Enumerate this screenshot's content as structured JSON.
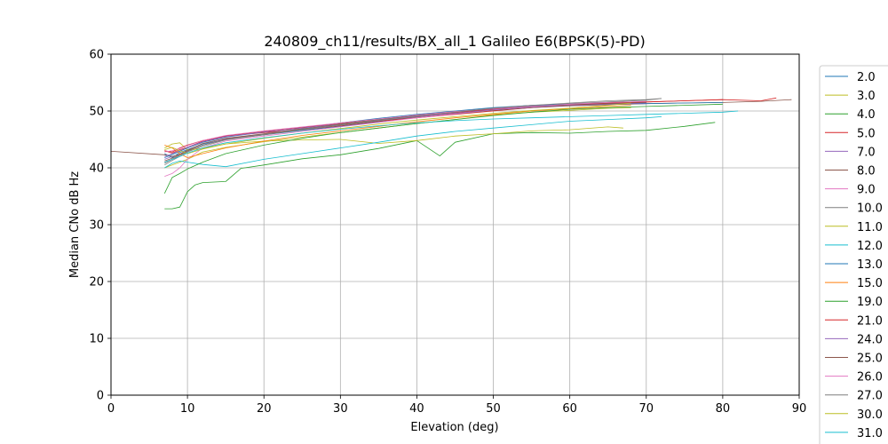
{
  "chart_data": {
    "type": "line",
    "title": "240809_ch11/results/BX_all_1 Galileo E6(BPSK(5)-PD)",
    "xlabel": "Elevation (deg)",
    "ylabel": "Median CNo dB Hz",
    "xlim": [
      0,
      90
    ],
    "ylim": [
      0,
      60
    ],
    "xticks": [
      "0",
      "10",
      "20",
      "30",
      "40",
      "50",
      "60",
      "70",
      "80",
      "90"
    ],
    "yticks": [
      "0",
      "10",
      "20",
      "30",
      "40",
      "50",
      "60"
    ],
    "grid": true,
    "legend_position": "outside-right",
    "series": [
      {
        "name": "2.0",
        "color": "#1f77b4",
        "x": [
          7,
          8,
          9,
          10,
          12,
          15,
          20,
          25,
          30,
          35,
          40,
          45,
          50,
          55,
          60,
          65,
          70
        ],
        "y": [
          42.5,
          41.8,
          42.7,
          43.2,
          44.2,
          45.0,
          45.8,
          46.6,
          47.3,
          48.1,
          49.0,
          49.8,
          50.3,
          50.7,
          51.0,
          51.2,
          51.3
        ]
      },
      {
        "name": "3.0",
        "color": "#bcbd22",
        "x": [
          7,
          8,
          9,
          10,
          12,
          15,
          20,
          25,
          30,
          35,
          40,
          45,
          50,
          55,
          60,
          65,
          68
        ],
        "y": [
          40.0,
          40.5,
          41.0,
          41.5,
          42.8,
          43.6,
          44.6,
          45.4,
          46.2,
          47.0,
          47.8,
          48.5,
          49.3,
          49.8,
          50.1,
          50.5,
          50.6
        ]
      },
      {
        "name": "4.0",
        "color": "#2ca02c",
        "x": [
          7,
          8,
          9,
          10,
          11,
          12,
          15,
          17,
          20,
          25,
          30,
          35,
          40,
          43,
          45,
          50,
          55,
          60,
          65,
          70,
          75,
          79
        ],
        "y": [
          32.8,
          32.8,
          33.1,
          35.8,
          37.0,
          37.4,
          37.6,
          39.9,
          40.5,
          41.6,
          42.3,
          43.4,
          44.8,
          42.1,
          44.5,
          46.0,
          46.2,
          46.1,
          46.4,
          46.6,
          47.3,
          48.0
        ]
      },
      {
        "name": "5.0",
        "color": "#d62728",
        "x": [
          7,
          8,
          9,
          10,
          12,
          15,
          20,
          25,
          30,
          35,
          40,
          45,
          50,
          55,
          60,
          65,
          70,
          75,
          80
        ],
        "y": [
          43.0,
          42.6,
          43.2,
          43.6,
          44.7,
          45.6,
          46.2,
          46.7,
          47.4,
          48.2,
          48.8,
          49.4,
          50.0,
          50.6,
          51.0,
          51.3,
          51.6,
          51.8,
          52.0
        ]
      },
      {
        "name": "7.0",
        "color": "#9467bd",
        "x": [
          7,
          8,
          9,
          10,
          12,
          15,
          20,
          25,
          30,
          35,
          40,
          45,
          50,
          55,
          60,
          65,
          70
        ],
        "y": [
          41.5,
          42.0,
          42.4,
          43.0,
          44.0,
          45.1,
          45.9,
          46.8,
          47.6,
          48.5,
          49.2,
          49.8,
          50.5,
          51.0,
          51.2,
          51.4,
          51.5
        ]
      },
      {
        "name": "8.0",
        "color": "#8c564b",
        "x": [
          0,
          7,
          8,
          9,
          10,
          12,
          15,
          20,
          25,
          30,
          35,
          40,
          45,
          50,
          55,
          60,
          65,
          70,
          75,
          80,
          85,
          89
        ],
        "y": [
          42.9,
          42.3,
          42.0,
          42.4,
          43.1,
          44.3,
          45.2,
          46.0,
          46.9,
          47.6,
          48.3,
          48.9,
          49.5,
          50.1,
          50.6,
          50.9,
          51.1,
          51.3,
          51.4,
          51.5,
          51.7,
          52.0
        ]
      },
      {
        "name": "9.0",
        "color": "#e377c2",
        "x": [
          7,
          8,
          9,
          10,
          12,
          15,
          20,
          25,
          30,
          35,
          40,
          45,
          50,
          55,
          60,
          65,
          70
        ],
        "y": [
          38.5,
          39.0,
          40.0,
          41.5,
          43.5,
          44.7,
          45.6,
          46.4,
          47.2,
          48.0,
          48.8,
          49.5,
          50.2,
          50.7,
          51.1,
          51.4,
          51.6
        ]
      },
      {
        "name": "10.0",
        "color": "#7f7f7f",
        "x": [
          7,
          8,
          9,
          10,
          12,
          15,
          20,
          25,
          30,
          35,
          40,
          45,
          50,
          55,
          60,
          65,
          70,
          72
        ],
        "y": [
          40.5,
          41.3,
          42.0,
          42.8,
          43.8,
          44.9,
          45.8,
          46.7,
          47.5,
          48.3,
          49.1,
          49.7,
          50.4,
          50.9,
          51.3,
          51.6,
          51.9,
          52.2
        ]
      },
      {
        "name": "11.0",
        "color": "#bcbd22",
        "x": [
          7,
          8,
          9,
          10,
          12,
          15,
          20,
          25,
          30,
          35,
          40,
          45,
          50,
          55,
          60,
          65,
          67
        ],
        "y": [
          43.5,
          44.2,
          44.4,
          43.1,
          43.4,
          44.2,
          44.7,
          44.9,
          45.0,
          44.3,
          44.8,
          45.6,
          46.0,
          46.5,
          46.7,
          47.2,
          47.0
        ]
      },
      {
        "name": "12.0",
        "color": "#17becf",
        "x": [
          7,
          8,
          9,
          10,
          12,
          15,
          20,
          25,
          30,
          35,
          40,
          45,
          50,
          55,
          60,
          65,
          70,
          72
        ],
        "y": [
          40.0,
          40.8,
          41.2,
          41.0,
          40.6,
          40.2,
          41.5,
          42.5,
          43.5,
          44.5,
          45.6,
          46.4,
          47.0,
          47.6,
          48.2,
          48.5,
          48.8,
          49.0
        ]
      },
      {
        "name": "13.0",
        "color": "#1f77b4",
        "x": [
          7,
          8,
          9,
          10,
          12,
          15,
          20,
          25,
          30,
          35,
          40,
          45,
          50,
          55,
          60,
          65,
          70,
          75,
          80
        ],
        "y": [
          41.8,
          42.3,
          42.9,
          43.5,
          44.5,
          45.4,
          46.3,
          47.1,
          47.9,
          48.7,
          49.4,
          50.0,
          50.6,
          51.0,
          51.2,
          51.3,
          51.3,
          51.4,
          51.5
        ]
      },
      {
        "name": "15.0",
        "color": "#ff7f0e",
        "x": [
          7,
          8,
          9,
          10,
          12,
          15,
          20,
          25,
          30,
          35,
          40,
          45,
          50,
          55,
          60,
          65,
          68
        ],
        "y": [
          44.0,
          43.5,
          42.5,
          41.8,
          42.5,
          43.5,
          44.7,
          45.7,
          46.5,
          47.3,
          48.1,
          48.8,
          49.4,
          50.0,
          50.4,
          50.8,
          51.0
        ]
      },
      {
        "name": "19.0",
        "color": "#2ca02c",
        "x": [
          7,
          8,
          9,
          10,
          12,
          15,
          20,
          25,
          30,
          35,
          40,
          45,
          50,
          55,
          60,
          65,
          70,
          75,
          80
        ],
        "y": [
          35.5,
          38.3,
          39.0,
          39.8,
          41.0,
          42.5,
          44.0,
          45.2,
          46.2,
          47.0,
          47.8,
          48.5,
          49.2,
          49.8,
          50.3,
          50.6,
          50.8,
          51.0,
          51.2
        ]
      },
      {
        "name": "21.0",
        "color": "#d62728",
        "x": [
          7,
          8,
          9,
          10,
          12,
          15,
          20,
          25,
          30,
          35,
          40,
          45,
          50,
          55,
          60,
          65,
          70,
          75,
          80,
          85,
          87
        ],
        "y": [
          43.0,
          42.8,
          43.5,
          44.0,
          44.8,
          45.6,
          46.4,
          47.1,
          47.8,
          48.5,
          49.1,
          49.7,
          50.3,
          50.8,
          51.1,
          51.4,
          51.6,
          51.8,
          52.0,
          51.8,
          52.3
        ]
      },
      {
        "name": "24.0",
        "color": "#9467bd",
        "x": [
          7,
          8,
          9,
          10,
          12,
          15,
          20,
          25,
          30,
          35,
          40,
          45,
          50,
          55,
          60,
          65,
          70
        ],
        "y": [
          42.0,
          42.5,
          43.0,
          43.6,
          44.6,
          45.5,
          46.3,
          47.0,
          47.7,
          48.4,
          49.0,
          49.6,
          50.2,
          50.7,
          51.0,
          51.2,
          51.4
        ]
      },
      {
        "name": "25.0",
        "color": "#8c564b",
        "x": [
          7,
          8,
          9,
          10,
          12,
          15,
          20,
          25,
          30,
          35,
          40,
          45,
          50,
          55,
          60,
          65,
          70
        ],
        "y": [
          41.2,
          41.7,
          42.3,
          43.0,
          44.0,
          45.0,
          45.9,
          46.8,
          47.7,
          48.5,
          49.2,
          49.9,
          50.4,
          50.8,
          51.1,
          51.3,
          51.5
        ]
      },
      {
        "name": "26.0",
        "color": "#e377c2",
        "x": [
          7,
          8,
          9,
          10,
          12,
          15,
          20,
          25,
          30,
          35,
          40,
          45,
          50,
          55,
          60,
          65,
          70
        ],
        "y": [
          42.8,
          43.0,
          43.4,
          43.9,
          44.8,
          45.7,
          46.5,
          47.2,
          47.9,
          48.6,
          49.3,
          49.9,
          50.4,
          50.8,
          51.2,
          51.5,
          51.7
        ]
      },
      {
        "name": "27.0",
        "color": "#7f7f7f",
        "x": [
          7,
          8,
          9,
          10,
          12,
          15,
          20,
          25,
          30,
          35,
          40,
          45,
          50,
          55,
          60,
          65,
          70,
          72
        ],
        "y": [
          40.8,
          41.5,
          42.2,
          42.9,
          44.0,
          45.0,
          45.9,
          46.8,
          47.6,
          48.4,
          49.1,
          49.8,
          50.5,
          51.0,
          51.4,
          51.8,
          52.0,
          52.2
        ]
      },
      {
        "name": "30.0",
        "color": "#bcbd22",
        "x": [
          7,
          8,
          9,
          10,
          12,
          15,
          20,
          25,
          30,
          35,
          40,
          45,
          50,
          55,
          60,
          65,
          68
        ],
        "y": [
          43.2,
          43.6,
          43.0,
          42.5,
          43.3,
          44.2,
          45.2,
          46.1,
          46.9,
          47.7,
          48.4,
          49.0,
          49.6,
          50.1,
          50.5,
          51.0,
          51.4
        ]
      },
      {
        "name": "31.0",
        "color": "#17becf",
        "x": [
          7,
          8,
          9,
          10,
          12,
          15,
          20,
          25,
          30,
          35,
          40,
          45,
          50,
          55,
          60,
          65,
          70,
          75,
          80,
          82
        ],
        "y": [
          41.0,
          41.5,
          42.0,
          42.6,
          43.5,
          44.4,
          45.3,
          46.1,
          46.8,
          47.4,
          47.9,
          48.3,
          48.6,
          48.8,
          49.0,
          49.2,
          49.4,
          49.6,
          49.8,
          50.0
        ]
      }
    ]
  }
}
